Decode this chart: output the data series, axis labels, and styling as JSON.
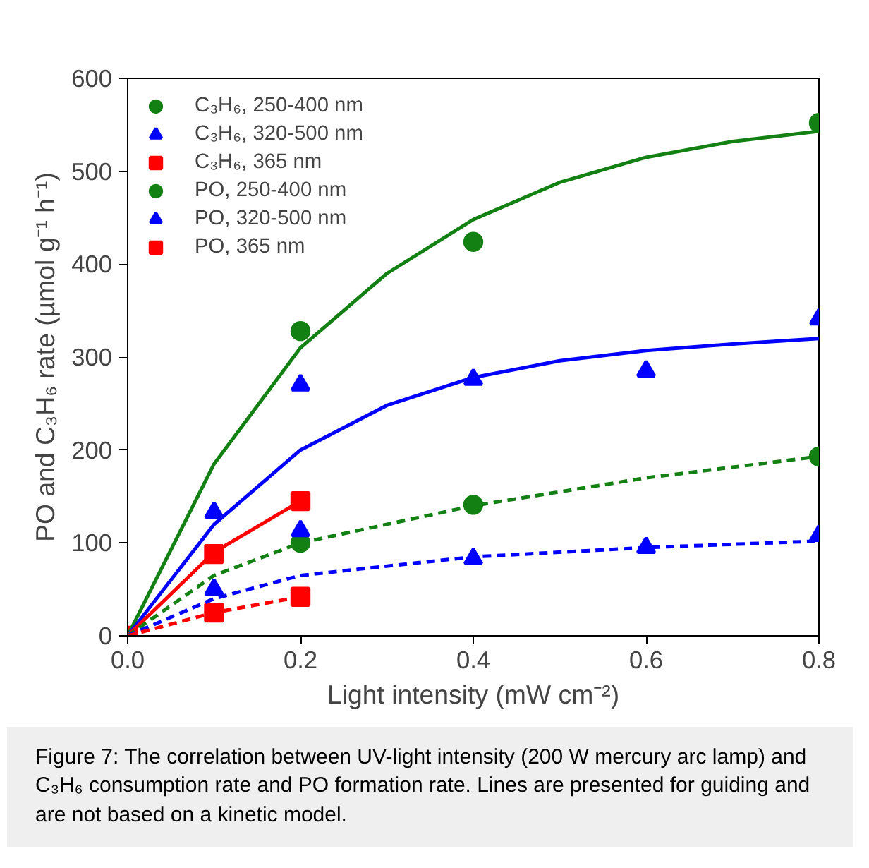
{
  "chart_data": {
    "type": "scatter",
    "xlabel": "Light intensity (mW cm⁻²)",
    "ylabel": "PO and C₃H₆ rate (µmol g⁻¹ h⁻¹)",
    "xlim": [
      0,
      0.8
    ],
    "ylim": [
      0,
      600
    ],
    "xticks": [
      {
        "value": 0,
        "label": "0.0"
      },
      0.2,
      0.4,
      0.6,
      0.8
    ],
    "yticks": [
      0,
      100,
      200,
      300,
      400,
      500,
      600
    ],
    "grid": false,
    "legend": "top left",
    "series": [
      {
        "name": "C₃H₆, 250-400 nm",
        "color": "#138013",
        "marker": "circle",
        "x": [
          0.2,
          0.4,
          0.8
        ],
        "values": [
          328,
          424,
          552
        ]
      },
      {
        "name": "C₃H₆, 320-500 nm",
        "color": "#0000ff",
        "marker": "triangle",
        "x": [
          0.1,
          0.2,
          0.4,
          0.6,
          0.8
        ],
        "values": [
          133,
          270,
          276,
          285,
          341
        ]
      },
      {
        "name": "C₃H₆, 365 nm",
        "color": "#ff0000",
        "marker": "square",
        "x": [
          0.1,
          0.2
        ],
        "values": [
          88,
          145
        ]
      },
      {
        "name": "PO, 250-400 nm",
        "color": "#138013",
        "marker": "circle",
        "x": [
          0.2,
          0.4,
          0.8
        ],
        "values": [
          100,
          141,
          193
        ]
      },
      {
        "name": "PO, 320-500 nm",
        "color": "#0000ff",
        "marker": "triangle",
        "x": [
          0.1,
          0.2,
          0.4,
          0.6,
          0.8
        ],
        "values": [
          50,
          113,
          83,
          95,
          108
        ]
      },
      {
        "name": "PO, 365 nm",
        "color": "#ff0000",
        "marker": "square",
        "x": [
          0,
          0.1,
          0.2
        ],
        "values": [
          0,
          25,
          42
        ]
      },
      {
        "type": "line",
        "color": "#138013",
        "line_style": "solid",
        "x": [
          0,
          0.1,
          0.2,
          0.3,
          0.4,
          0.5,
          0.6,
          0.7,
          0.8
        ],
        "values": [
          0,
          185,
          310,
          390,
          448,
          488,
          515,
          532,
          543
        ]
      },
      {
        "type": "line",
        "color": "#0000ff",
        "line_style": "solid",
        "x": [
          0,
          0.1,
          0.2,
          0.3,
          0.4,
          0.5,
          0.6,
          0.7,
          0.8
        ],
        "values": [
          0,
          120,
          200,
          248,
          278,
          296,
          307,
          314,
          320
        ]
      },
      {
        "type": "line",
        "color": "#ff0000",
        "line_style": "solid",
        "x": [
          0,
          0.1,
          0.2
        ],
        "values": [
          0,
          90,
          145
        ]
      },
      {
        "type": "line",
        "color": "#138013",
        "line_style": "dashed",
        "x": [
          0,
          0.1,
          0.2,
          0.4,
          0.6,
          0.8
        ],
        "values": [
          0,
          65,
          100,
          140,
          170,
          193
        ]
      },
      {
        "type": "line",
        "color": "#0000ff",
        "line_style": "dashed",
        "x": [
          0,
          0.1,
          0.2,
          0.4,
          0.6,
          0.8
        ],
        "values": [
          0,
          40,
          65,
          85,
          95,
          102
        ]
      },
      {
        "type": "line",
        "color": "#ff0000",
        "line_style": "dashed",
        "x": [
          0,
          0.1,
          0.2
        ],
        "values": [
          0,
          25,
          42
        ]
      }
    ],
    "annotations": [
      "Figure 7: The correlation between UV-light intensity (200 W mercury arc lamp) and C₃H₆ consumption rate and PO formation rate. Lines are presented for guiding and are not based on a kinetic model."
    ]
  }
}
